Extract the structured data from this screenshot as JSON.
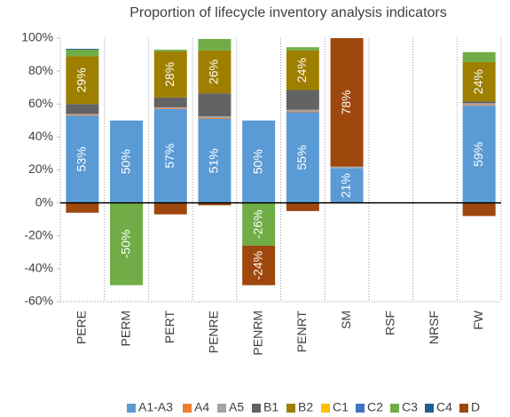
{
  "chart_data": {
    "type": "bar",
    "stacked": true,
    "title": "Proportion of lifecycle inventory analysis indicators",
    "categories": [
      "PERE",
      "PERM",
      "PERT",
      "PENRE",
      "PENRM",
      "PENRT",
      "SM",
      "RSF",
      "NRSF",
      "FW"
    ],
    "ylim": [
      -60,
      100
    ],
    "yticks": [
      {
        "value": -60,
        "label": "-60%"
      },
      {
        "value": -40,
        "label": "-40%"
      },
      {
        "value": -20,
        "label": "-20%"
      },
      {
        "value": 0,
        "label": "0%"
      },
      {
        "value": 20,
        "label": "20%"
      },
      {
        "value": 40,
        "label": "40%"
      },
      {
        "value": 60,
        "label": "60%"
      },
      {
        "value": 80,
        "label": "80%"
      },
      {
        "value": 100,
        "label": "100%"
      }
    ],
    "legend": "bottom",
    "series": [
      {
        "name": "A1-A3",
        "color": "#5b9bd5",
        "values": [
          53,
          50,
          57,
          51,
          50,
          55,
          21,
          null,
          null,
          59
        ],
        "value_labels": [
          "53%",
          "50%",
          "57%",
          "51%",
          "50%",
          "55%",
          "21%",
          null,
          null,
          "59%"
        ]
      },
      {
        "name": "A4",
        "color": "#ed7d31",
        "values": [
          0.5,
          null,
          0.5,
          0.5,
          null,
          0.5,
          null,
          null,
          null,
          0.5
        ]
      },
      {
        "name": "A5",
        "color": "#a5a5a5",
        "values": [
          0.5,
          null,
          0.5,
          1,
          null,
          1,
          1,
          null,
          null,
          1
        ]
      },
      {
        "name": "B1",
        "color": "#636363",
        "values": [
          6,
          null,
          6,
          14,
          null,
          12,
          null,
          null,
          null,
          1
        ]
      },
      {
        "name": "B2",
        "color": "#9e7f00",
        "values": [
          29,
          null,
          28,
          26,
          null,
          24,
          null,
          null,
          null,
          24
        ],
        "value_labels": [
          "29%",
          null,
          "28%",
          "26%",
          null,
          "24%",
          null,
          null,
          null,
          "24%"
        ]
      },
      {
        "name": "C1",
        "color": "#ffc000",
        "values": [
          null,
          null,
          null,
          null,
          null,
          null,
          null,
          null,
          null,
          null
        ]
      },
      {
        "name": "C2",
        "color": "#4472c4",
        "values": [
          null,
          null,
          null,
          null,
          null,
          null,
          null,
          null,
          null,
          null
        ]
      },
      {
        "name": "C3",
        "color": "#70ad47",
        "values": [
          4,
          -50,
          1,
          7,
          -26,
          2,
          null,
          null,
          null,
          6
        ],
        "value_labels": [
          null,
          "-50%",
          null,
          null,
          "-26%",
          null,
          null,
          null,
          null,
          null
        ]
      },
      {
        "name": "C4",
        "color": "#255e91",
        "values": [
          0.5,
          null,
          null,
          null,
          null,
          null,
          null,
          null,
          null,
          null
        ]
      },
      {
        "name": "D",
        "color": "#9e480e",
        "values": [
          -6,
          null,
          -7,
          -1.5,
          -24,
          -5,
          78,
          null,
          null,
          -8
        ],
        "value_labels": [
          null,
          null,
          null,
          null,
          "-24%",
          null,
          "78%",
          null,
          null,
          null
        ]
      }
    ]
  }
}
